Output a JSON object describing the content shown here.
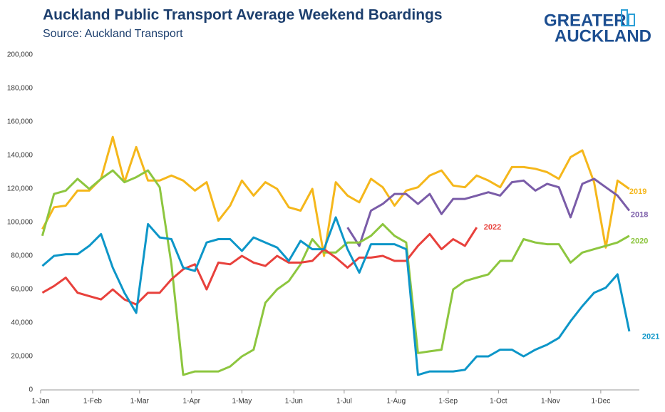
{
  "chart_data": {
    "type": "line",
    "title": "Auckland Public Transport Average Weekend Boardings",
    "subtitle": "Source: Auckland Transport",
    "logo": [
      "GREATER",
      "AUCKLAND"
    ],
    "x": [
      2,
      9,
      16,
      23,
      30,
      37,
      44,
      51,
      58,
      65,
      72,
      79,
      86,
      93,
      100,
      107,
      114,
      121,
      128,
      135,
      142,
      149,
      156,
      163,
      170,
      177,
      184,
      191,
      198,
      205,
      212,
      219,
      226,
      233,
      240,
      247,
      254,
      261,
      268,
      275,
      282,
      289,
      296,
      303,
      310,
      317,
      324,
      331,
      338,
      345,
      352
    ],
    "xlim": [
      1,
      358
    ],
    "xticks": [
      {
        "value": 1,
        "label": "1-Jan"
      },
      {
        "value": 32,
        "label": "1-Feb"
      },
      {
        "value": 60,
        "label": "1-Mar"
      },
      {
        "value": 91,
        "label": "1-Apr"
      },
      {
        "value": 121,
        "label": "1-May"
      },
      {
        "value": 152,
        "label": "1-Jun"
      },
      {
        "value": 182,
        "label": "1-Jul"
      },
      {
        "value": 213,
        "label": "1-Aug"
      },
      {
        "value": 244,
        "label": "1-Sep"
      },
      {
        "value": 274,
        "label": "1-Oct"
      },
      {
        "value": 305,
        "label": "1-Nov"
      },
      {
        "value": 335,
        "label": "1-Dec"
      }
    ],
    "ylim": [
      0,
      200000
    ],
    "yticks": [
      0,
      {
        "value": 20000,
        "label": "20,000"
      },
      {
        "value": 40000,
        "label": "40,000"
      },
      {
        "value": 60000,
        "label": "60,000"
      },
      {
        "value": 80000,
        "label": "80,000"
      },
      {
        "value": 100000,
        "label": "100,000"
      },
      {
        "value": 120000,
        "label": "120,000"
      },
      {
        "value": 140000,
        "label": "140,000"
      },
      {
        "value": 160000,
        "label": "160,000"
      },
      {
        "value": 180000,
        "label": "180,000"
      },
      {
        "value": 200000,
        "label": "200,000"
      }
    ],
    "grid": false,
    "series": [
      {
        "name": "2019",
        "color": "#f5b71b",
        "values": [
          96000,
          109000,
          110000,
          119000,
          119000,
          126000,
          151000,
          124000,
          145000,
          125000,
          125000,
          128000,
          125000,
          119000,
          124000,
          101000,
          110000,
          125000,
          116000,
          124000,
          120000,
          109000,
          107000,
          120000,
          80000,
          124000,
          116000,
          112000,
          126000,
          121000,
          110000,
          119000,
          121000,
          128000,
          131000,
          122000,
          121000,
          128000,
          125000,
          121000,
          133000,
          133000,
          132000,
          130000,
          126000,
          139000,
          143000,
          124000,
          85000,
          125000,
          120000
        ]
      },
      {
        "name": "2018",
        "color": "#7a5ca8",
        "values": [
          null,
          null,
          null,
          null,
          null,
          null,
          null,
          null,
          null,
          null,
          null,
          null,
          null,
          null,
          null,
          null,
          null,
          null,
          null,
          null,
          null,
          null,
          null,
          null,
          null,
          null,
          97000,
          86000,
          107000,
          111000,
          117000,
          117000,
          111000,
          117000,
          105000,
          114000,
          114000,
          116000,
          118000,
          116000,
          124000,
          125000,
          119000,
          123000,
          121000,
          103000,
          123000,
          126000,
          121000,
          116000,
          107000
        ]
      },
      {
        "name": "2020",
        "color": "#8dc63f",
        "values": [
          92000,
          117000,
          119000,
          126000,
          120000,
          126000,
          131000,
          124000,
          127000,
          131000,
          121000,
          75000,
          9000,
          11000,
          11000,
          11000,
          14000,
          20000,
          24000,
          52000,
          60000,
          65000,
          75000,
          90000,
          82000,
          82000,
          88000,
          88000,
          92000,
          99000,
          92000,
          88000,
          22000,
          23000,
          24000,
          60000,
          65000,
          67000,
          69000,
          77000,
          77000,
          90000,
          88000,
          87000,
          87000,
          76000,
          82000,
          84000,
          86000,
          88000,
          92000
        ]
      },
      {
        "name": "2022",
        "color": "#e8413c",
        "values": [
          58000,
          62000,
          67000,
          58000,
          56000,
          54000,
          60000,
          54000,
          51000,
          58000,
          58000,
          66000,
          72000,
          75000,
          60000,
          76000,
          75000,
          80000,
          76000,
          74000,
          80000,
          76000,
          76000,
          77000,
          84000,
          79000,
          73000,
          79000,
          79000,
          80000,
          77000,
          77000,
          86000,
          93000,
          84000,
          90000,
          86000,
          97000,
          null,
          null,
          null,
          null,
          null,
          null,
          null,
          null,
          null,
          null,
          null,
          null,
          null
        ]
      },
      {
        "name": "2021",
        "color": "#0d96c8",
        "values": [
          74000,
          80000,
          81000,
          81000,
          86000,
          93000,
          73000,
          58000,
          46000,
          99000,
          91000,
          90000,
          73000,
          71000,
          88000,
          90000,
          90000,
          83000,
          91000,
          88000,
          85000,
          77000,
          89000,
          84000,
          84000,
          103000,
          84000,
          70000,
          87000,
          87000,
          87000,
          84000,
          9000,
          11000,
          11000,
          11000,
          12000,
          20000,
          20000,
          24000,
          24000,
          20000,
          24000,
          27000,
          31000,
          41000,
          50000,
          58000,
          61000,
          69000,
          35000
        ]
      }
    ]
  }
}
